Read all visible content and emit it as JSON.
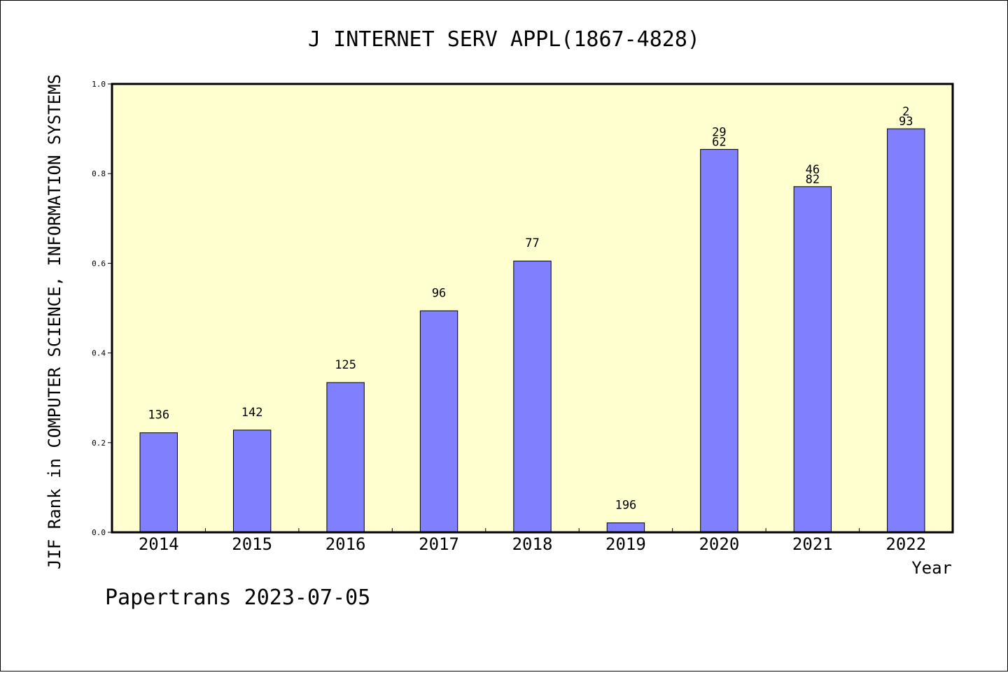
{
  "chart_data": {
    "type": "bar",
    "title": "J INTERNET SERV APPL(1867-4828)",
    "xlabel": "Year",
    "ylabel": "JIF Rank in COMPUTER SCIENCE, INFORMATION SYSTEMS",
    "footer": "Papertrans 2023-07-05",
    "categories": [
      "2014",
      "2015",
      "2016",
      "2017",
      "2018",
      "2019",
      "2020",
      "2021",
      "2022"
    ],
    "values": [
      0.222,
      0.228,
      0.334,
      0.494,
      0.605,
      0.021,
      0.854,
      0.771,
      0.9
    ],
    "bar_labels": [
      [
        "136"
      ],
      [
        "142"
      ],
      [
        "125"
      ],
      [
        "96"
      ],
      [
        "77"
      ],
      [
        "196"
      ],
      [
        "29",
        "62"
      ],
      [
        "46",
        "82"
      ],
      [
        "2",
        "93"
      ]
    ],
    "ylim": [
      0,
      1
    ],
    "yticks": [
      "0.0",
      "0.2",
      "0.4",
      "0.6",
      "0.8",
      "1.0"
    ],
    "grid": false,
    "colors": {
      "bar_fill": "#8080ff",
      "plot_background": "#ffffd0",
      "axis": "#000000"
    }
  }
}
